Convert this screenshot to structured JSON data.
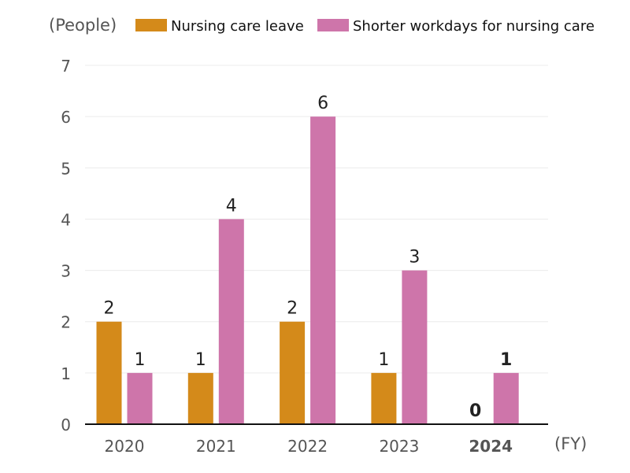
{
  "chart_data": {
    "type": "bar",
    "ylabel": "(People)",
    "xlabel": "(FY)",
    "categories": [
      "2020",
      "2021",
      "2022",
      "2023",
      "2024"
    ],
    "highlight_category": "2024",
    "series": [
      {
        "name": "Nursing care leave",
        "color": "#d48a1a",
        "values": [
          2,
          1,
          2,
          1,
          0
        ]
      },
      {
        "name": "Shorter workdays for nursing care",
        "color": "#ce75aa",
        "values": [
          1,
          4,
          6,
          3,
          1
        ]
      }
    ],
    "ylim": [
      0,
      7
    ],
    "yticks": [
      0,
      1,
      2,
      3,
      4,
      5,
      6,
      7
    ],
    "grid": true,
    "legend_position": "top"
  }
}
